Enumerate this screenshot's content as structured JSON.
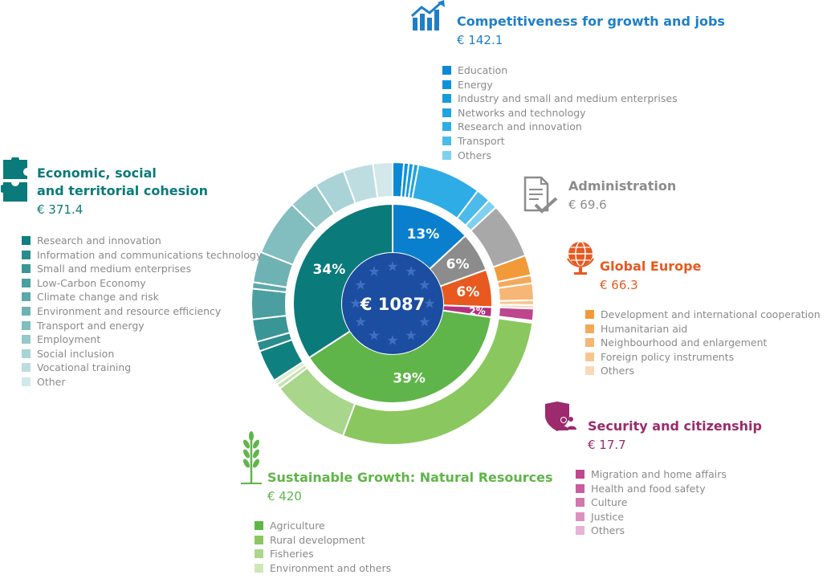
{
  "total_label": "€ 1087",
  "colors": {
    "cohesion": "#0b7a7b",
    "growth": "#0a7fce",
    "admin": "#8c8c8c",
    "global": "#e8591f",
    "security": "#b5307f",
    "natural": "#5fb549",
    "center": "#1b4da0"
  },
  "headings": {
    "competitiveness": {
      "title": "Competitiveness for growth and jobs",
      "amount": "€ 142.1"
    },
    "cohesion": {
      "title_line1": "Economic, social",
      "title_line2": "and territorial cohesion",
      "amount": "€ 371.4"
    },
    "administration": {
      "title": "Administration",
      "amount": "€ 69.6"
    },
    "global": {
      "title": "Global Europe",
      "amount": "€ 66.3"
    },
    "security": {
      "title": "Security and citizenship",
      "amount": "€ 17.7"
    },
    "natural": {
      "title": "Sustainable Growth: Natural Resources",
      "amount": "€ 420"
    }
  },
  "legends": {
    "competitiveness": [
      {
        "label": "Education",
        "color": "#0a8ad6"
      },
      {
        "label": "Energy",
        "color": "#0d92da"
      },
      {
        "label": "Industry and small and medium enterprises",
        "color": "#169bde"
      },
      {
        "label": "Networks and technology",
        "color": "#22a3e1"
      },
      {
        "label": "Research and innovation",
        "color": "#2eace5"
      },
      {
        "label": "Transport",
        "color": "#4cbaea"
      },
      {
        "label": "Others",
        "color": "#7fd0f0"
      }
    ],
    "cohesion": [
      {
        "label": "Research  and innovation",
        "color": "#0f8080"
      },
      {
        "label": "Information and communications technology",
        "color": "#2a8c8d"
      },
      {
        "label": "Small and medium enterprises",
        "color": "#3a9596"
      },
      {
        "label": "Low-Carbon Economy",
        "color": "#4b9fa0"
      },
      {
        "label": "Climate change and risk",
        "color": "#5ca8aa"
      },
      {
        "label": "Environment and resource efficiency",
        "color": "#6fb2b4"
      },
      {
        "label": "Transport and energy",
        "color": "#82bdbf"
      },
      {
        "label": "Employment",
        "color": "#96c8ca"
      },
      {
        "label": "Social inclusion",
        "color": "#a9d3d6"
      },
      {
        "label": "Vocational training",
        "color": "#bddde0"
      },
      {
        "label": "Other",
        "color": "#d2e8ea"
      }
    ],
    "global": [
      {
        "label": "Development and international cooperation",
        "color": "#f29a3a"
      },
      {
        "label": "Humanitarian aid",
        "color": "#f4a95a"
      },
      {
        "label": "Neighbourhood and enlargement",
        "color": "#f6b674"
      },
      {
        "label": "Foreign policy instruments",
        "color": "#f8c590"
      },
      {
        "label": "Others",
        "color": "#fad8b8"
      }
    ],
    "security": [
      {
        "label": "Migration and home affairs",
        "color": "#c0458f"
      },
      {
        "label": "Health and food safety",
        "color": "#c95d9d"
      },
      {
        "label": "Culture",
        "color": "#d276ae"
      },
      {
        "label": "Justice",
        "color": "#dc92c0"
      },
      {
        "label": "Others",
        "color": "#e7b2d5"
      }
    ],
    "natural": [
      {
        "label": "Agriculture",
        "color": "#5db547"
      },
      {
        "label": "Rural development",
        "color": "#8ac760"
      },
      {
        "label": "Fisheries",
        "color": "#acd68c"
      },
      {
        "label": "Environment and others",
        "color": "#cfe6b9"
      }
    ]
  },
  "chart_data": {
    "type": "pie",
    "title": "€ 1087",
    "inner": [
      {
        "name": "Competitiveness for growth and jobs",
        "value": 142.1,
        "pct_label": "13%",
        "color": "#0a7fce"
      },
      {
        "name": "Administration",
        "value": 69.6,
        "pct_label": "6%",
        "color": "#8c8c8c"
      },
      {
        "name": "Global Europe",
        "value": 66.3,
        "pct_label": "6%",
        "color": "#e8591f"
      },
      {
        "name": "Security and citizenship",
        "value": 17.7,
        "pct_label": "2%",
        "color": "#b5307f"
      },
      {
        "name": "Sustainable Growth: Natural Resources",
        "value": 420,
        "pct_label": "39%",
        "color": "#5fb549"
      },
      {
        "name": "Economic, social and territorial cohesion",
        "value": 371.4,
        "pct_label": "34%",
        "color": "#0b7a7b"
      }
    ],
    "outer": [
      {
        "group": "Competitiveness for growth and jobs",
        "name": "Education",
        "value": 14,
        "color": "#0a8ad6"
      },
      {
        "group": "Competitiveness for growth and jobs",
        "name": "Energy",
        "value": 6,
        "color": "#0d92da"
      },
      {
        "group": "Competitiveness for growth and jobs",
        "name": "Industry and small and medium enterprises",
        "value": 6,
        "color": "#169bde"
      },
      {
        "group": "Competitiveness for growth and jobs",
        "name": "Networks and technology",
        "value": 6,
        "color": "#22a3e1"
      },
      {
        "group": "Competitiveness for growth and jobs",
        "name": "Research and innovation",
        "value": 80,
        "color": "#2eace5"
      },
      {
        "group": "Competitiveness for growth and jobs",
        "name": "Transport",
        "value": 18,
        "color": "#4cbaea"
      },
      {
        "group": "Competitiveness for growth and jobs",
        "name": "Others",
        "value": 12.1,
        "color": "#7fd0f0"
      },
      {
        "group": "Administration",
        "name": "Administration",
        "value": 69.6,
        "color": "#a8a8a8"
      },
      {
        "group": "Global Europe",
        "name": "Development and international cooperation",
        "value": 25,
        "color": "#f29a3a"
      },
      {
        "group": "Global Europe",
        "name": "Humanitarian aid",
        "value": 10,
        "color": "#f4a95a"
      },
      {
        "group": "Global Europe",
        "name": "Neighbourhood and enlargement",
        "value": 21,
        "color": "#f6b674"
      },
      {
        "group": "Global Europe",
        "name": "Foreign policy instruments",
        "value": 6,
        "color": "#f8c590"
      },
      {
        "group": "Global Europe",
        "name": "Others",
        "value": 4.3,
        "color": "#fad8b8"
      },
      {
        "group": "Security and citizenship",
        "name": "Migration and home affairs",
        "value": 15,
        "color": "#c0458f"
      },
      {
        "group": "Security and citizenship",
        "name": "Health and food safety",
        "value": 1.5,
        "color": "#c95d9d"
      },
      {
        "group": "Security and citizenship",
        "name": "Culture",
        "value": 0.6,
        "color": "#d276ae"
      },
      {
        "group": "Security and citizenship",
        "name": "Justice",
        "value": 0.3,
        "color": "#dc92c0"
      },
      {
        "group": "Security and citizenship",
        "name": "Others",
        "value": 0.3,
        "color": "#e7b2d5"
      },
      {
        "group": "Sustainable Growth: Natural Resources",
        "name": "Agriculture",
        "value": 310,
        "color": "#8ac85f"
      },
      {
        "group": "Sustainable Growth: Natural Resources",
        "name": "Rural development",
        "value": 98,
        "color": "#a8d68a"
      },
      {
        "group": "Sustainable Growth: Natural Resources",
        "name": "Fisheries",
        "value": 6,
        "color": "#c6e3b0"
      },
      {
        "group": "Sustainable Growth: Natural Resources",
        "name": "Environment and others",
        "value": 6,
        "color": "#dcedcd"
      },
      {
        "group": "Economic, social and territorial cohesion",
        "name": "Research  and innovation",
        "value": 40,
        "color": "#0f8080"
      },
      {
        "group": "Economic, social and territorial cohesion",
        "name": "Information and communications technology",
        "value": 12,
        "color": "#2a8c8d"
      },
      {
        "group": "Economic, social and territorial cohesion",
        "name": "Small and medium enterprises",
        "value": 28,
        "color": "#3a9596"
      },
      {
        "group": "Economic, social and territorial cohesion",
        "name": "Low-Carbon Economy",
        "value": 38,
        "color": "#4b9fa0"
      },
      {
        "group": "Economic, social and territorial cohesion",
        "name": "Climate change and risk",
        "value": 8,
        "color": "#5ca8aa"
      },
      {
        "group": "Economic, social and territorial cohesion",
        "name": "Environment and resource efficiency",
        "value": 38,
        "color": "#6fb2b4"
      },
      {
        "group": "Economic, social and territorial cohesion",
        "name": "Transport and energy",
        "value": 70,
        "color": "#82bdbf"
      },
      {
        "group": "Economic, social and territorial cohesion",
        "name": "Employment",
        "value": 38,
        "color": "#96c8ca"
      },
      {
        "group": "Economic, social and territorial cohesion",
        "name": "Social inclusion",
        "value": 38,
        "color": "#a9d3d6"
      },
      {
        "group": "Economic, social and territorial cohesion",
        "name": "Vocational training",
        "value": 37,
        "color": "#bddde0"
      },
      {
        "group": "Economic, social and territorial cohesion",
        "name": "Other",
        "value": 24.4,
        "color": "#d2e8ea"
      }
    ]
  }
}
